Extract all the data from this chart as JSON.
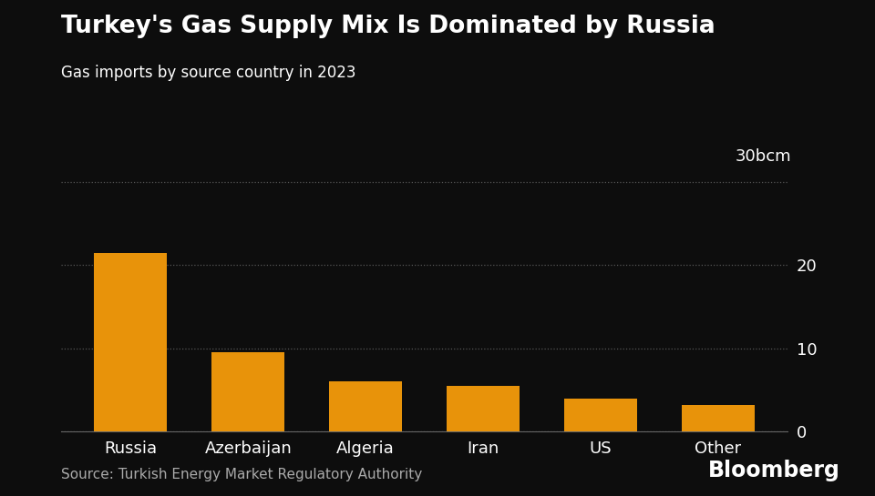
{
  "title": "Turkey's Gas Supply Mix Is Dominated by Russia",
  "subtitle": "Gas imports by source country in 2023",
  "categories": [
    "Russia",
    "Azerbaijan",
    "Algeria",
    "Iran",
    "US",
    "Other"
  ],
  "values": [
    21.5,
    9.5,
    6.0,
    5.5,
    4.0,
    3.2
  ],
  "bar_color": "#E8930A",
  "background_color": "#0d0d0d",
  "text_color": "#ffffff",
  "grid_color": "#555555",
  "ylabel_unit": "30bcm",
  "yticks": [
    0,
    10,
    20
  ],
  "ylim": [
    0,
    31
  ],
  "source": "Source: Turkish Energy Market Regulatory Authority",
  "bloomberg": "Bloomberg",
  "title_fontsize": 19,
  "subtitle_fontsize": 12,
  "tick_fontsize": 13,
  "source_fontsize": 11,
  "bloomberg_fontsize": 17
}
